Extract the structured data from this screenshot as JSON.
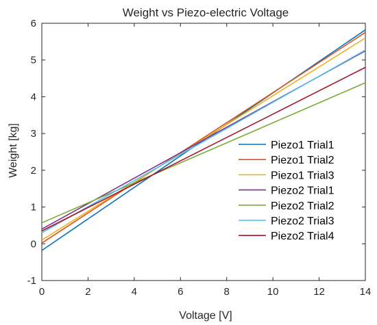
{
  "chart_data": {
    "type": "line",
    "title": "Weight vs Piezo-electric Voltage",
    "xlabel": "Voltage [V]",
    "ylabel": "Weight [kg]",
    "xlim": [
      0,
      14
    ],
    "ylim": [
      -1,
      6
    ],
    "xticks": [
      0,
      2,
      4,
      6,
      8,
      10,
      12,
      14
    ],
    "yticks": [
      -1,
      0,
      1,
      2,
      3,
      4,
      5,
      6
    ],
    "grid": false,
    "legend_position": "right",
    "series": [
      {
        "name": "Piezo1 Trial1",
        "color": "#0072BD",
        "x": [
          0,
          14
        ],
        "y": [
          -0.18,
          5.82
        ]
      },
      {
        "name": "Piezo1 Trial2",
        "color": "#D95319",
        "x": [
          0,
          14
        ],
        "y": [
          0.02,
          5.75
        ]
      },
      {
        "name": "Piezo1 Trial3",
        "color": "#EDB120",
        "x": [
          0,
          14
        ],
        "y": [
          0.1,
          5.6
        ]
      },
      {
        "name": "Piezo2 Trial1",
        "color": "#7E2F8E",
        "x": [
          0,
          14
        ],
        "y": [
          0.4,
          5.25
        ]
      },
      {
        "name": "Piezo2 Trial2",
        "color": "#77AC30",
        "x": [
          0,
          14
        ],
        "y": [
          0.57,
          4.38
        ]
      },
      {
        "name": "Piezo2 Trial3",
        "color": "#4DBEEE",
        "x": [
          0,
          14
        ],
        "y": [
          0.3,
          5.27
        ]
      },
      {
        "name": "Piezo2 Trial4",
        "color": "#A2142F",
        "x": [
          0,
          14
        ],
        "y": [
          0.35,
          4.8
        ]
      }
    ]
  }
}
